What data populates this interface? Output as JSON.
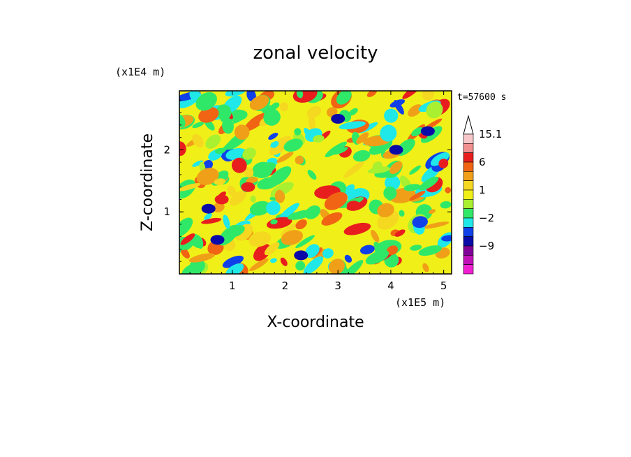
{
  "chart_data": {
    "type": "heatmap",
    "title": "zonal velocity",
    "xlabel": "X-coordinate",
    "ylabel": "Z-coordinate",
    "x_unit": "(x1E5 m)",
    "y_unit": "(x1E4 m)",
    "time_label": "t=57600 s",
    "x_ticks": [
      "1",
      "2",
      "3",
      "4",
      "5"
    ],
    "y_ticks": [
      "1",
      "2"
    ],
    "xlim": [
      0,
      5.15
    ],
    "ylim": [
      0,
      2.95
    ],
    "colorbar": {
      "labels": [
        "15.1",
        "6",
        "1",
        "−2",
        "−9"
      ],
      "levels_top_to_bottom": [
        15.1,
        12,
        9,
        6,
        3,
        2,
        1,
        0,
        -1,
        -2,
        -3,
        -6,
        -9,
        -12,
        -15
      ],
      "colors_top_to_bottom": [
        "#ffffff",
        "#f7c6c6",
        "#f28f8f",
        "#e81e1e",
        "#f06414",
        "#f0a018",
        "#f5d820",
        "#f0f018",
        "#a8f030",
        "#30e868",
        "#20e8e8",
        "#1040e8",
        "#0a0aa8",
        "#800098",
        "#c010b8",
        "#f020d0"
      ]
    },
    "colors": {
      "dominant_positive": "#f0f018",
      "dominant_negative": "#30e868",
      "strong_positive": "#e81e1e",
      "strong_negative": "#0a0aa8"
    }
  }
}
